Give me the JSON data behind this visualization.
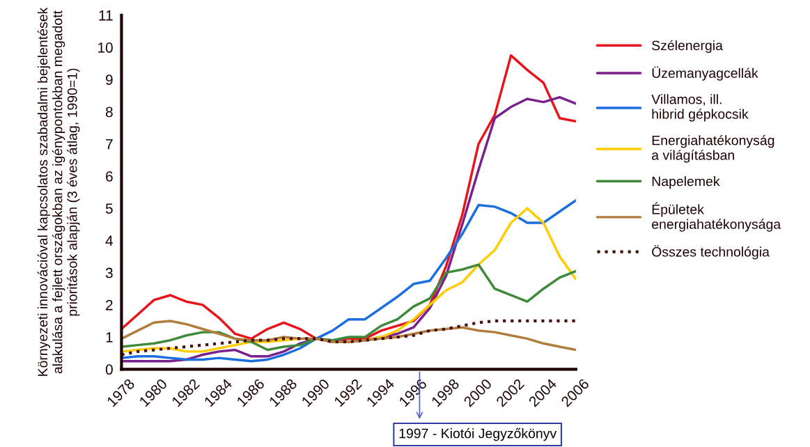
{
  "chart_data": {
    "type": "line",
    "ylabel": "Környezeti innovációval kapcsolatos szabadalmi bejelentések\nalakulása a fejlett országokban az igénypontokban megadott\nprioritások alapján (3 éves átlag, 1990=1)",
    "x": [
      1978,
      1979,
      1980,
      1981,
      1982,
      1983,
      1984,
      1985,
      1986,
      1987,
      1988,
      1989,
      1990,
      1991,
      1992,
      1993,
      1994,
      1995,
      1996,
      1997,
      1998,
      1999,
      2000,
      2001,
      2002,
      2003,
      2004,
      2005,
      2006
    ],
    "xlim": [
      1978,
      2006
    ],
    "xticks": [
      1978,
      1980,
      1982,
      1984,
      1986,
      1988,
      1990,
      1992,
      1994,
      1996,
      1998,
      2000,
      2002,
      2004,
      2006
    ],
    "ylim": [
      0,
      11
    ],
    "yticks": [
      0,
      1,
      2,
      3,
      4,
      5,
      6,
      7,
      8,
      9,
      10,
      11
    ],
    "grid": false,
    "legend": "right",
    "marker": "none",
    "series": [
      {
        "name": "Szélenergia",
        "color": "#e8141c",
        "line_style": "solid",
        "values": [
          1.25,
          1.7,
          2.15,
          2.3,
          2.1,
          2.0,
          1.6,
          1.1,
          0.95,
          1.25,
          1.45,
          1.25,
          0.95,
          0.85,
          0.95,
          0.95,
          1.2,
          1.35,
          1.5,
          2.0,
          3.2,
          4.8,
          7.0,
          7.9,
          9.75,
          9.3,
          8.9,
          7.8,
          7.7
        ]
      },
      {
        "name": "Üzemanyagcellák",
        "color": "#7b1f8e",
        "line_style": "solid",
        "values": [
          0.25,
          0.25,
          0.25,
          0.25,
          0.3,
          0.45,
          0.55,
          0.6,
          0.4,
          0.4,
          0.55,
          0.8,
          0.95,
          0.9,
          0.85,
          0.9,
          1.0,
          1.1,
          1.3,
          1.9,
          2.9,
          4.5,
          6.2,
          7.8,
          8.15,
          8.4,
          8.3,
          8.45,
          8.25
        ]
      },
      {
        "name": "Villamos, ill.\nhibrid gépkocsik",
        "color": "#1a6ee0",
        "line_style": "solid",
        "values": [
          0.35,
          0.4,
          0.4,
          0.35,
          0.3,
          0.3,
          0.35,
          0.3,
          0.25,
          0.3,
          0.45,
          0.65,
          0.95,
          1.2,
          1.55,
          1.55,
          1.9,
          2.25,
          2.65,
          2.75,
          3.45,
          4.2,
          5.1,
          5.05,
          4.85,
          4.55,
          4.55,
          4.9,
          5.25
        ]
      },
      {
        "name": "Energiahatékonyság\na világításban",
        "color": "#ffcc00",
        "line_style": "solid",
        "values": [
          0.55,
          0.6,
          0.65,
          0.65,
          0.55,
          0.55,
          0.65,
          0.75,
          0.85,
          0.85,
          0.9,
          0.95,
          0.95,
          0.85,
          0.85,
          0.9,
          1.0,
          1.2,
          1.55,
          2.0,
          2.45,
          2.7,
          3.25,
          3.7,
          4.55,
          5.0,
          4.55,
          3.5,
          2.8
        ]
      },
      {
        "name": "Napelemek",
        "color": "#3f8a3a",
        "line_style": "solid",
        "values": [
          0.7,
          0.75,
          0.8,
          0.9,
          1.05,
          1.15,
          1.15,
          0.95,
          0.85,
          0.6,
          0.7,
          0.75,
          0.95,
          0.9,
          1.0,
          1.0,
          1.35,
          1.55,
          1.95,
          2.2,
          3.0,
          3.1,
          3.25,
          2.5,
          2.3,
          2.1,
          2.5,
          2.85,
          3.05
        ]
      },
      {
        "name": "Épületek\nenergiahatékonysága",
        "color": "#b07d3a",
        "line_style": "solid",
        "values": [
          0.95,
          1.2,
          1.45,
          1.5,
          1.4,
          1.25,
          1.1,
          0.95,
          0.9,
          0.9,
          1.0,
          0.95,
          0.95,
          0.85,
          0.85,
          0.9,
          0.95,
          1.0,
          1.1,
          1.2,
          1.25,
          1.3,
          1.2,
          1.15,
          1.05,
          0.95,
          0.8,
          0.7,
          0.6
        ]
      },
      {
        "name": "Összes technológia",
        "color": "#4a1010",
        "line_style": "dotted",
        "values": [
          0.45,
          0.55,
          0.6,
          0.65,
          0.7,
          0.75,
          0.8,
          0.85,
          0.9,
          0.9,
          0.95,
          0.95,
          0.95,
          0.85,
          0.85,
          0.9,
          0.95,
          1.0,
          1.05,
          1.2,
          1.25,
          1.35,
          1.45,
          1.5,
          1.5,
          1.5,
          1.5,
          1.5,
          1.5
        ]
      }
    ],
    "annotations": [
      "1997 - Kiotói Jegyzőkönyv"
    ]
  }
}
